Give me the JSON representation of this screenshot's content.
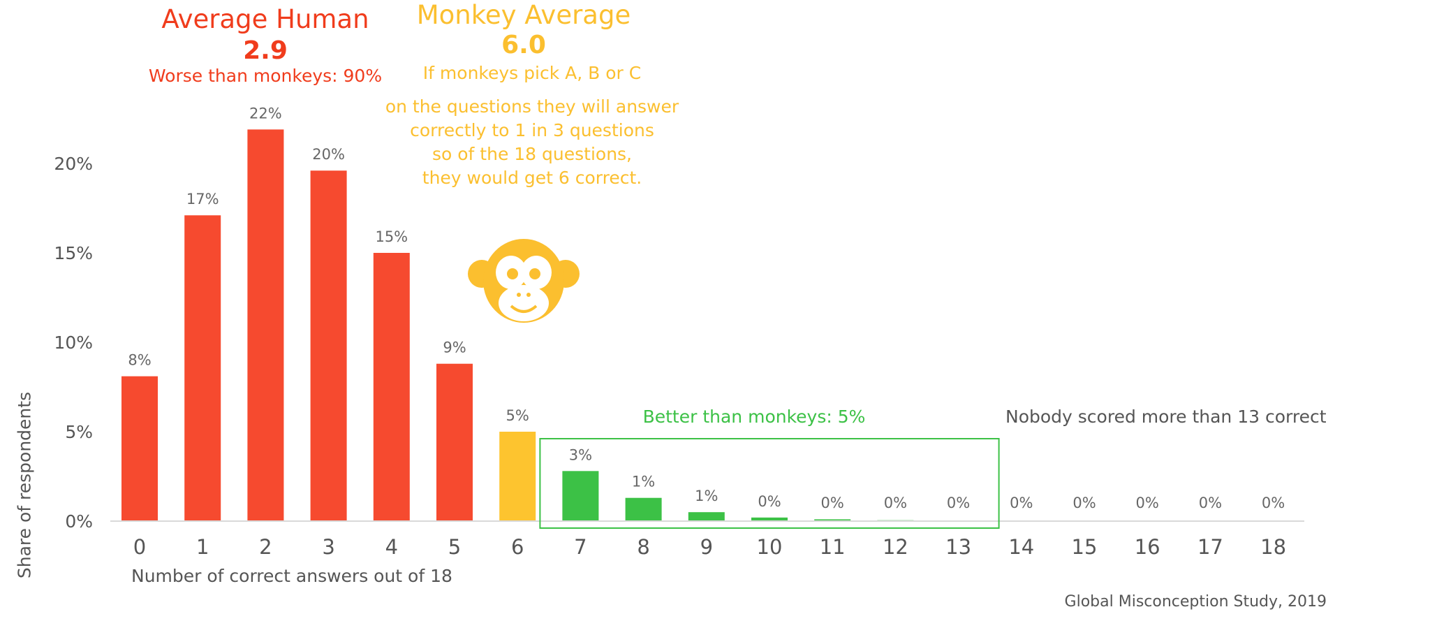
{
  "annotations": {
    "human_title": "Average Human",
    "human_value": "2.9",
    "human_worse": "Worse than monkeys: 90%",
    "monkey_title": "Monkey Average",
    "monkey_value": "6.0",
    "monkey_pick": "If monkeys pick A, B or C",
    "monkey_explanation": "on the questions  they will answer\ncorrectly to 1 in 3 questions\nso of the 18 questions,\nthey would get 6 correct.",
    "better_than_monkeys": "Better than monkeys: 5%",
    "nobody_scored": "Nobody scored more than 13 correct",
    "source": "Global Misconception Study, 2019"
  },
  "colors": {
    "worse": "#f64a2f",
    "monkey": "#fdc42f",
    "better": "#3cc146",
    "axis_text": "#555555",
    "icon": "#fbbf2f"
  },
  "icons": {
    "monkey": "monkey-face-icon"
  },
  "chart_data": {
    "type": "bar",
    "xlabel": "Number of correct answers out of 18",
    "ylabel": "Share of respondents",
    "ylim": [
      0,
      23
    ],
    "yticks": [
      0,
      5,
      10,
      15,
      20
    ],
    "ytick_labels": [
      "0%",
      "5%",
      "10%",
      "15%",
      "20%"
    ],
    "grid": false,
    "categories": [
      "0",
      "1",
      "2",
      "3",
      "4",
      "5",
      "6",
      "7",
      "8",
      "9",
      "10",
      "11",
      "12",
      "13",
      "14",
      "15",
      "16",
      "17",
      "18"
    ],
    "values": [
      8.1,
      17.1,
      21.9,
      19.6,
      15.0,
      8.8,
      5.0,
      2.8,
      1.3,
      0.5,
      0.2,
      0.1,
      0.05,
      0.02,
      0,
      0,
      0,
      0,
      0
    ],
    "data_labels": [
      "8%",
      "17%",
      "22%",
      "20%",
      "15%",
      "9%",
      "5%",
      "3%",
      "1%",
      "1%",
      "0%",
      "0%",
      "0%",
      "0%",
      "0%",
      "0%",
      "0%",
      "0%",
      "0%"
    ],
    "groups": [
      "worse",
      "worse",
      "worse",
      "worse",
      "worse",
      "worse",
      "monkey",
      "better",
      "better",
      "better",
      "better",
      "better",
      "better",
      "better",
      "none",
      "none",
      "none",
      "none",
      "none"
    ],
    "highlight_box": "7-13"
  }
}
